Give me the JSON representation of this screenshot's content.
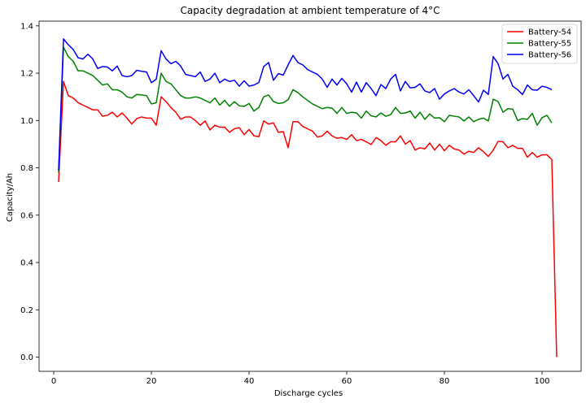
{
  "chart_data": {
    "type": "line",
    "title": "Capacity degradation at ambient temperature of 4°C",
    "xlabel": "Discharge cycles",
    "ylabel": "Capacity/Ah",
    "xlim": [
      -3,
      108
    ],
    "ylim": [
      -0.06,
      1.42
    ],
    "xticks": [
      0,
      20,
      40,
      60,
      80,
      100
    ],
    "yticks": [
      0.0,
      0.2,
      0.4,
      0.6,
      0.8,
      1.0,
      1.2,
      1.4
    ],
    "xtick_labels": [
      "0",
      "20",
      "40",
      "60",
      "80",
      "100"
    ],
    "ytick_labels": [
      "0.0",
      "0.2",
      "0.4",
      "0.6",
      "0.8",
      "1.0",
      "1.2",
      "1.4"
    ],
    "grid": false,
    "legend_position": "top-right",
    "series": [
      {
        "name": "Battery-54",
        "color": "#ff0000",
        "x": [
          1,
          2,
          3,
          4,
          5,
          6,
          7,
          8,
          9,
          10,
          11,
          12,
          13,
          14,
          15,
          16,
          17,
          18,
          19,
          20,
          21,
          22,
          23,
          24,
          25,
          26,
          27,
          28,
          29,
          30,
          31,
          32,
          33,
          34,
          35,
          36,
          37,
          38,
          39,
          40,
          41,
          42,
          43,
          44,
          45,
          46,
          47,
          48,
          49,
          50,
          51,
          52,
          53,
          54,
          55,
          56,
          57,
          58,
          59,
          60,
          61,
          62,
          63,
          64,
          65,
          66,
          67,
          68,
          69,
          70,
          71,
          72,
          73,
          74,
          75,
          76,
          77,
          78,
          79,
          80,
          81,
          82,
          83,
          84,
          85,
          86,
          87,
          88,
          89,
          90,
          91,
          92,
          93,
          94,
          95,
          96,
          97,
          98,
          99,
          100,
          101,
          102,
          103
        ],
        "y": [
          0.74,
          1.165,
          1.105,
          1.095,
          1.075,
          1.065,
          1.055,
          1.045,
          1.045,
          1.018,
          1.022,
          1.035,
          1.015,
          1.032,
          1.01,
          0.985,
          1.008,
          1.015,
          1.01,
          1.01,
          0.98,
          1.1,
          1.08,
          1.055,
          1.035,
          1.005,
          1.015,
          1.015,
          1.0,
          0.98,
          0.998,
          0.96,
          0.98,
          0.972,
          0.972,
          0.95,
          0.965,
          0.97,
          0.94,
          0.962,
          0.935,
          0.932,
          0.998,
          0.985,
          0.99,
          0.95,
          0.953,
          0.885,
          0.995,
          0.995,
          0.975,
          0.965,
          0.955,
          0.93,
          0.935,
          0.955,
          0.935,
          0.925,
          0.928,
          0.92,
          0.94,
          0.915,
          0.92,
          0.91,
          0.898,
          0.928,
          0.915,
          0.895,
          0.91,
          0.91,
          0.935,
          0.9,
          0.915,
          0.875,
          0.885,
          0.88,
          0.905,
          0.875,
          0.9,
          0.872,
          0.895,
          0.88,
          0.875,
          0.858,
          0.87,
          0.865,
          0.885,
          0.868,
          0.848,
          0.875,
          0.912,
          0.91,
          0.885,
          0.895,
          0.882,
          0.882,
          0.845,
          0.865,
          0.845,
          0.855,
          0.855,
          0.835,
          0.0
        ]
      },
      {
        "name": "Battery-55",
        "color": "#008000",
        "x": [
          1,
          2,
          3,
          4,
          5,
          6,
          7,
          8,
          9,
          10,
          11,
          12,
          13,
          14,
          15,
          16,
          17,
          18,
          19,
          20,
          21,
          22,
          23,
          24,
          25,
          26,
          27,
          28,
          29,
          30,
          31,
          32,
          33,
          34,
          35,
          36,
          37,
          38,
          39,
          40,
          41,
          42,
          43,
          44,
          45,
          46,
          47,
          48,
          49,
          50,
          51,
          52,
          53,
          54,
          55,
          56,
          57,
          58,
          59,
          60,
          61,
          62,
          63,
          64,
          65,
          66,
          67,
          68,
          69,
          70,
          71,
          72,
          73,
          74,
          75,
          76,
          77,
          78,
          79,
          80,
          81,
          82,
          83,
          84,
          85,
          86,
          87,
          88,
          89,
          90,
          91,
          92,
          93,
          94,
          95,
          96,
          97,
          98,
          99,
          100,
          101,
          102
        ],
        "y": [
          0.78,
          1.31,
          1.27,
          1.25,
          1.21,
          1.21,
          1.2,
          1.19,
          1.17,
          1.15,
          1.155,
          1.13,
          1.13,
          1.12,
          1.1,
          1.095,
          1.11,
          1.108,
          1.105,
          1.07,
          1.075,
          1.2,
          1.165,
          1.155,
          1.13,
          1.105,
          1.095,
          1.095,
          1.1,
          1.095,
          1.085,
          1.075,
          1.095,
          1.065,
          1.085,
          1.06,
          1.08,
          1.062,
          1.06,
          1.072,
          1.04,
          1.055,
          1.1,
          1.108,
          1.08,
          1.072,
          1.075,
          1.088,
          1.13,
          1.118,
          1.1,
          1.085,
          1.07,
          1.06,
          1.05,
          1.055,
          1.052,
          1.03,
          1.055,
          1.03,
          1.035,
          1.032,
          1.01,
          1.04,
          1.02,
          1.015,
          1.032,
          1.018,
          1.025,
          1.055,
          1.03,
          1.032,
          1.04,
          1.01,
          1.035,
          1.005,
          1.028,
          1.01,
          1.012,
          0.995,
          1.022,
          1.018,
          1.015,
          0.998,
          1.015,
          0.995,
          1.005,
          1.01,
          0.998,
          1.09,
          1.08,
          1.035,
          1.05,
          1.048,
          1.0,
          1.008,
          1.005,
          1.03,
          0.98,
          1.012,
          1.022,
          0.99
        ]
      },
      {
        "name": "Battery-56",
        "color": "#0000ff",
        "x": [
          1,
          2,
          3,
          4,
          5,
          6,
          7,
          8,
          9,
          10,
          11,
          12,
          13,
          14,
          15,
          16,
          17,
          18,
          19,
          20,
          21,
          22,
          23,
          24,
          25,
          26,
          27,
          28,
          29,
          30,
          31,
          32,
          33,
          34,
          35,
          36,
          37,
          38,
          39,
          40,
          41,
          42,
          43,
          44,
          45,
          46,
          47,
          48,
          49,
          50,
          51,
          52,
          53,
          54,
          55,
          56,
          57,
          58,
          59,
          60,
          61,
          62,
          63,
          64,
          65,
          66,
          67,
          68,
          69,
          70,
          71,
          72,
          73,
          74,
          75,
          76,
          77,
          78,
          79,
          80,
          81,
          82,
          83,
          84,
          85,
          86,
          87,
          88,
          89,
          90,
          91,
          92,
          93,
          94,
          95,
          96,
          97,
          98,
          99,
          100,
          101,
          102
        ],
        "y": [
          0.79,
          1.345,
          1.32,
          1.3,
          1.265,
          1.26,
          1.28,
          1.26,
          1.22,
          1.228,
          1.226,
          1.21,
          1.23,
          1.19,
          1.185,
          1.19,
          1.212,
          1.208,
          1.205,
          1.16,
          1.175,
          1.295,
          1.26,
          1.24,
          1.25,
          1.23,
          1.195,
          1.19,
          1.185,
          1.205,
          1.165,
          1.175,
          1.2,
          1.16,
          1.175,
          1.165,
          1.17,
          1.145,
          1.168,
          1.145,
          1.15,
          1.16,
          1.228,
          1.245,
          1.17,
          1.198,
          1.192,
          1.235,
          1.275,
          1.245,
          1.235,
          1.215,
          1.205,
          1.195,
          1.175,
          1.14,
          1.175,
          1.15,
          1.178,
          1.155,
          1.12,
          1.162,
          1.12,
          1.16,
          1.135,
          1.105,
          1.152,
          1.135,
          1.175,
          1.195,
          1.125,
          1.165,
          1.138,
          1.14,
          1.155,
          1.125,
          1.118,
          1.135,
          1.09,
          1.112,
          1.125,
          1.135,
          1.12,
          1.112,
          1.13,
          1.105,
          1.078,
          1.128,
          1.11,
          1.27,
          1.24,
          1.175,
          1.195,
          1.145,
          1.13,
          1.11,
          1.15,
          1.13,
          1.128,
          1.145,
          1.14,
          1.13
        ]
      }
    ]
  }
}
